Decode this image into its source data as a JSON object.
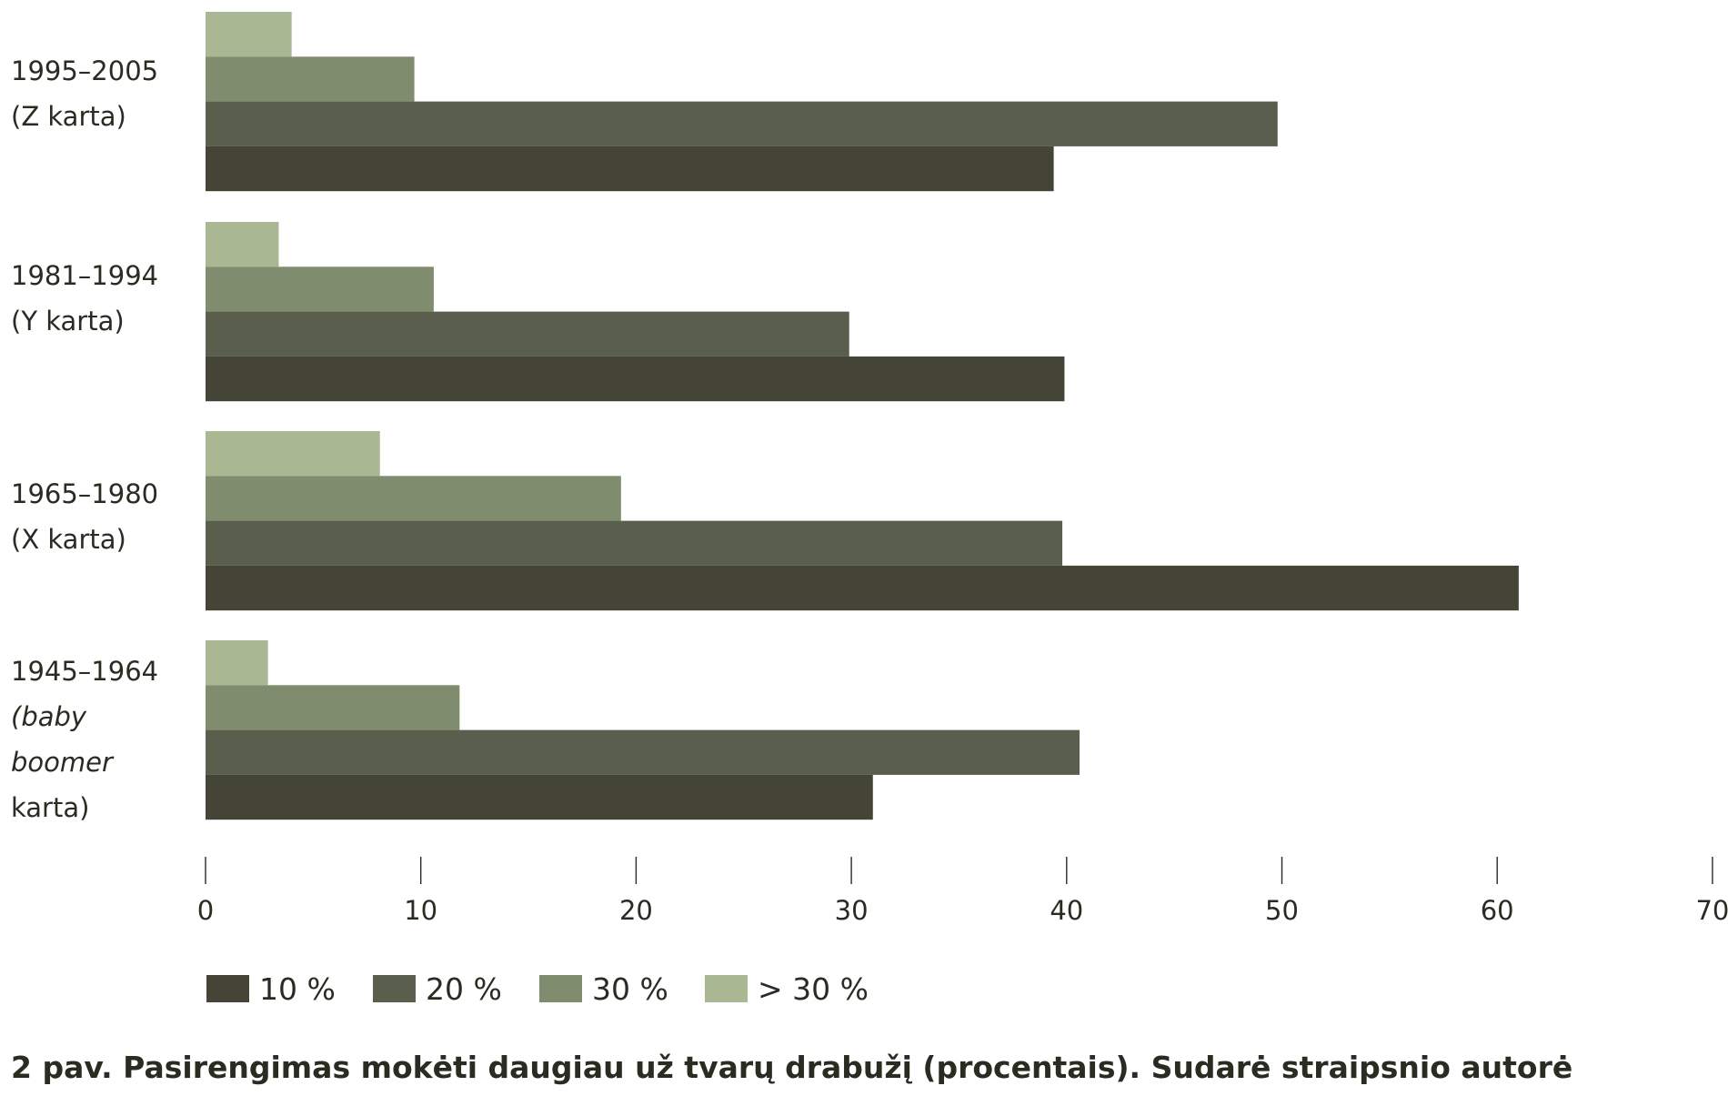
{
  "chart_data": {
    "type": "bar",
    "orientation": "horizontal",
    "categories": [
      [
        "1995–2005",
        "(Z karta)"
      ],
      [
        "1981–1994",
        "(Y karta)"
      ],
      [
        "1965–1980",
        "(X karta)"
      ],
      [
        "1945–1964",
        "(baby",
        "boomer",
        "karta)"
      ]
    ],
    "series": [
      {
        "name": "> 30 %",
        "color": "#a9b893",
        "values": [
          4,
          3.4,
          8.1,
          2.9
        ]
      },
      {
        "name": "30 %",
        "color": "#7f8c6d",
        "values": [
          9.7,
          10.6,
          19.3,
          11.8
        ]
      },
      {
        "name": "20 %",
        "color": "#5a5e4c",
        "values": [
          49.8,
          29.9,
          39.8,
          40.6
        ]
      },
      {
        "name": "10 %",
        "color": "#444536",
        "values": [
          39.4,
          39.9,
          61,
          31
        ]
      }
    ],
    "legend_order": [
      "10 %",
      "20 %",
      "30 %",
      "> 30 %"
    ],
    "xlim": [
      0,
      70
    ],
    "xticks": [
      0,
      10,
      20,
      30,
      40,
      50,
      60,
      70
    ],
    "xlabel": "",
    "ylabel": "",
    "legend_position": "bottom-left"
  },
  "caption": "2 pav. Pasirengimas mokėti daugiau už tvarų drabužį (procentais). Sudarė straipsnio autorė"
}
